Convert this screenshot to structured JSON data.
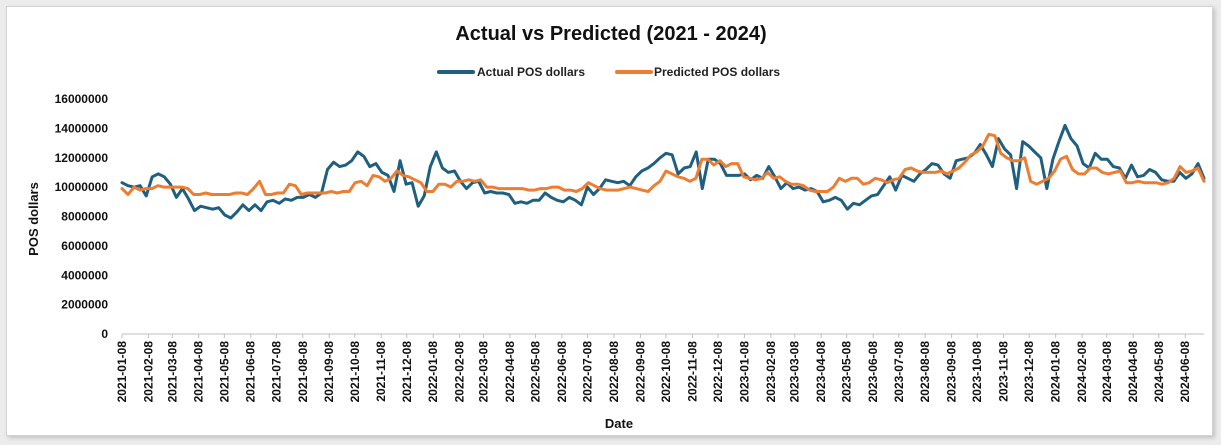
{
  "chart_data": {
    "type": "line",
    "title": "Actual vs Predicted (2021 - 2024)",
    "xlabel": "Date",
    "ylabel": "POS dollars",
    "ylim": [
      0,
      16000000
    ],
    "yticks": [
      0,
      2000000,
      4000000,
      6000000,
      8000000,
      10000000,
      12000000,
      14000000,
      16000000
    ],
    "ytick_labels": [
      "0",
      "2000000",
      "4000000",
      "6000000",
      "8000000",
      "10000000",
      "12000000",
      "14000000",
      "16000000"
    ],
    "x_tick_labels": [
      "2021-01-08",
      "2021-02-08",
      "2021-03-08",
      "2021-04-08",
      "2021-05-08",
      "2021-06-08",
      "2021-07-08",
      "2021-08-08",
      "2021-09-08",
      "2021-10-08",
      "2021-11-08",
      "2021-12-08",
      "2022-01-08",
      "2022-02-08",
      "2022-03-08",
      "2022-04-08",
      "2022-05-08",
      "2022-06-08",
      "2022-07-08",
      "2022-08-08",
      "2022-09-08",
      "2022-10-08",
      "2022-11-08",
      "2022-12-08",
      "2023-01-08",
      "2023-02-08",
      "2023-03-08",
      "2023-04-08",
      "2023-05-08",
      "2023-06-08",
      "2023-07-08",
      "2023-08-08",
      "2023-09-08",
      "2023-10-08",
      "2023-11-08",
      "2023-12-08",
      "2024-01-08",
      "2024-02-08",
      "2024-03-08",
      "2024-04-08",
      "2024-05-08",
      "2024-06-08"
    ],
    "x_last": "2024-06-30",
    "grid": false,
    "legend_position": "top-center",
    "series": [
      {
        "name": "Actual POS dollars",
        "color": "#1f5f7f",
        "values": [
          10300000,
          10100000,
          10000000,
          10100000,
          9400000,
          10700000,
          10900000,
          10700000,
          10200000,
          9300000,
          9900000,
          9200000,
          8400000,
          8700000,
          8600000,
          8500000,
          8600000,
          8100000,
          7900000,
          8300000,
          8800000,
          8400000,
          8800000,
          8400000,
          9000000,
          9100000,
          8900000,
          9200000,
          9100000,
          9300000,
          9300000,
          9500000,
          9300000,
          9600000,
          11200000,
          11700000,
          11400000,
          11500000,
          11800000,
          12400000,
          12100000,
          11400000,
          11600000,
          11000000,
          10800000,
          9700000,
          11800000,
          10200000,
          10300000,
          8700000,
          9400000,
          11400000,
          12400000,
          11300000,
          11000000,
          11100000,
          10400000,
          9900000,
          10300000,
          10400000,
          9600000,
          9700000,
          9600000,
          9600000,
          9500000,
          8900000,
          9000000,
          8900000,
          9100000,
          9100000,
          9600000,
          9300000,
          9100000,
          9000000,
          9300000,
          9100000,
          8800000,
          10000000,
          9500000,
          9900000,
          10500000,
          10400000,
          10300000,
          10400000,
          10100000,
          10700000,
          11100000,
          11300000,
          11600000,
          12000000,
          12300000,
          12200000,
          10900000,
          11300000,
          11400000,
          12400000,
          9900000,
          11900000,
          11900000,
          11600000,
          10800000,
          10800000,
          10800000,
          10900000,
          10500000,
          10800000,
          10600000,
          11400000,
          10700000,
          9900000,
          10300000,
          9900000,
          10000000,
          9800000,
          9900000,
          9700000,
          9000000,
          9100000,
          9300000,
          9100000,
          8500000,
          8900000,
          8800000,
          9100000,
          9400000,
          9500000,
          10100000,
          10700000,
          9800000,
          10800000,
          10600000,
          10400000,
          10900000,
          11200000,
          11600000,
          11500000,
          10900000,
          10600000,
          11800000,
          11900000,
          12000000,
          12300000,
          12900000,
          12200000,
          11400000,
          13300000,
          12600000,
          12200000,
          9900000,
          13100000,
          12800000,
          12400000,
          12000000,
          9900000,
          11900000,
          13100000,
          14200000,
          13300000,
          12800000,
          11600000,
          11300000,
          12300000,
          11900000,
          11900000,
          11400000,
          11300000,
          10600000,
          11500000,
          10700000,
          10800000,
          11200000,
          11000000,
          10500000,
          10400000,
          10400000,
          11000000,
          10600000,
          10900000,
          11600000,
          10600000
        ]
      },
      {
        "name": "Predicted POS dollars",
        "color": "#ed7d31",
        "values": [
          9900000,
          9500000,
          10000000,
          9800000,
          9900000,
          9900000,
          10100000,
          10000000,
          10000000,
          10000000,
          10000000,
          9900000,
          9500000,
          9500000,
          9600000,
          9500000,
          9500000,
          9500000,
          9500000,
          9600000,
          9600000,
          9500000,
          9900000,
          10400000,
          9500000,
          9500000,
          9600000,
          9600000,
          10200000,
          10100000,
          9500000,
          9600000,
          9600000,
          9600000,
          9600000,
          9700000,
          9600000,
          9700000,
          9700000,
          10300000,
          10400000,
          10100000,
          10800000,
          10700000,
          10400000,
          10600000,
          11100000,
          10800000,
          10700000,
          10500000,
          10300000,
          9700000,
          9700000,
          10200000,
          10200000,
          10000000,
          10400000,
          10400000,
          10500000,
          10400000,
          10500000,
          10000000,
          10000000,
          9900000,
          9900000,
          9900000,
          9900000,
          9900000,
          9800000,
          9800000,
          9900000,
          9900000,
          10000000,
          10000000,
          9800000,
          9800000,
          9700000,
          9900000,
          10300000,
          10100000,
          9900000,
          9800000,
          9800000,
          9800000,
          9900000,
          10000000,
          9900000,
          9800000,
          9700000,
          10100000,
          10400000,
          11100000,
          10900000,
          10700000,
          10600000,
          10400000,
          10600000,
          11900000,
          11900000,
          11500000,
          11800000,
          11400000,
          11600000,
          11600000,
          10700000,
          10600000,
          10500000,
          10600000,
          11000000,
          10600000,
          10700000,
          10400000,
          10200000,
          10200000,
          10100000,
          9800000,
          9700000,
          9700000,
          9700000,
          10000000,
          10600000,
          10400000,
          10600000,
          10600000,
          10200000,
          10300000,
          10600000,
          10500000,
          10300000,
          10500000,
          10600000,
          11200000,
          11300000,
          11100000,
          11000000,
          11000000,
          11000000,
          11100000,
          10900000,
          11100000,
          11300000,
          11700000,
          12200000,
          12400000,
          12800000,
          13600000,
          13500000,
          12300000,
          12000000,
          11800000,
          11800000,
          12000000,
          10400000,
          10200000,
          10400000,
          10600000,
          11100000,
          11900000,
          12100000,
          11200000,
          10900000,
          10900000,
          11300000,
          11300000,
          11000000,
          10900000,
          11000000,
          11100000,
          10300000,
          10300000,
          10400000,
          10300000,
          10300000,
          10300000,
          10200000,
          10300000,
          10600000,
          11400000,
          11000000,
          11100000,
          11300000,
          10400000
        ]
      }
    ]
  }
}
